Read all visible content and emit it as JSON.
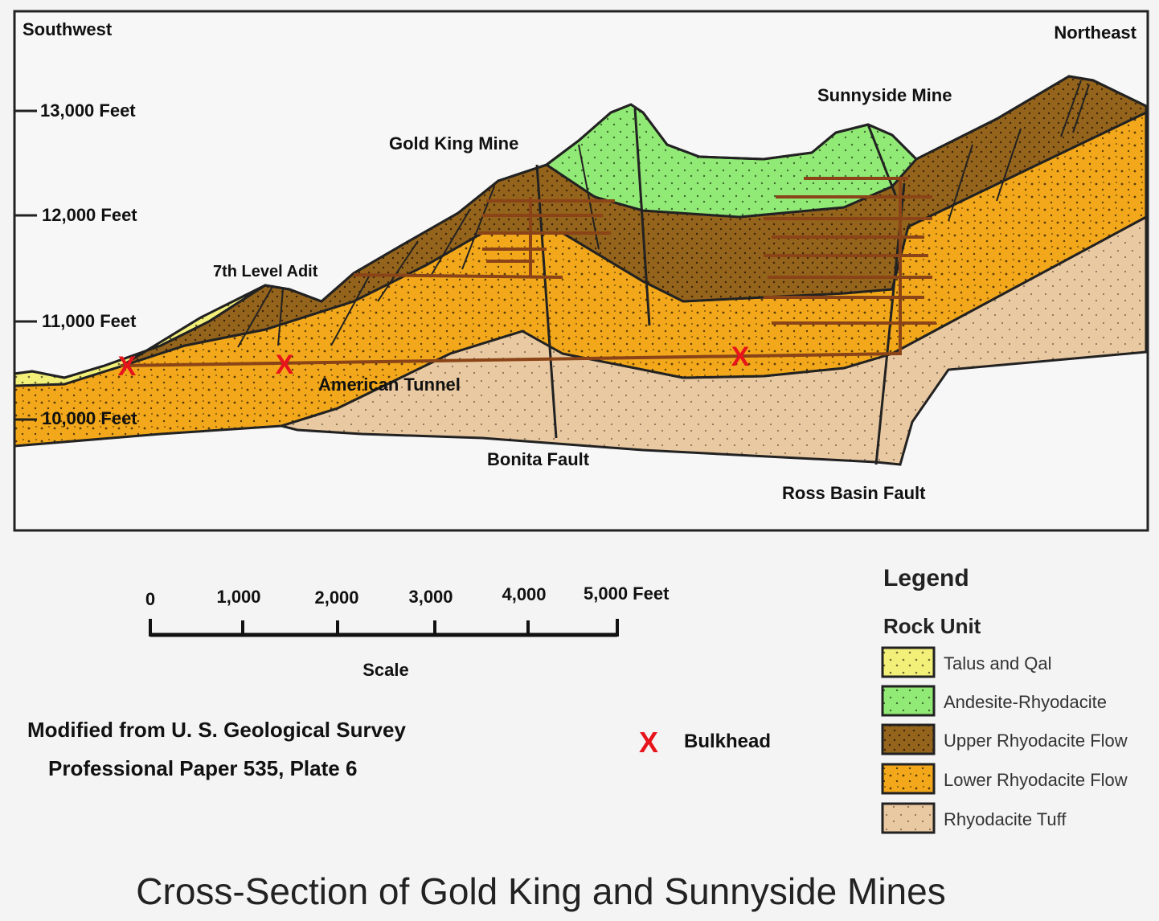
{
  "directions": {
    "left": "Southwest",
    "right": "Northeast"
  },
  "elevations": [
    "13,000 Feet",
    "12,000 Feet",
    "11,000 Feet",
    "10,000 Feet"
  ],
  "features": {
    "gold_king_mine": "Gold King Mine",
    "sunnyside_mine": "Sunnyside Mine",
    "level_adit": "7th Level Adit",
    "american_tunnel": "American Tunnel",
    "bonita_fault": "Bonita Fault",
    "ross_basin_fault": "Ross Basin Fault"
  },
  "scale": {
    "ticks": [
      "0",
      "1,000",
      "2,000",
      "3,000",
      "4,000",
      "5,000 Feet"
    ],
    "label": "Scale"
  },
  "source": {
    "line1": "Modified from U. S. Geological Survey",
    "line2": "Professional Paper 535, Plate 6"
  },
  "bulkhead": {
    "symbol": "X",
    "label": "Bulkhead",
    "color": "#e8141c"
  },
  "legend": {
    "title": "Legend",
    "subtitle": "Rock Unit",
    "items": [
      {
        "label": "Talus and Qal",
        "color": "#f3f07a"
      },
      {
        "label": "Andesite-Rhyodacite",
        "color": "#92ea76"
      },
      {
        "label": "Upper Rhyodacite Flow",
        "color": "#94641c"
      },
      {
        "label": "Lower Rhyodacite Flow",
        "color": "#f2a81a"
      },
      {
        "label": "Rhyodacite Tuff",
        "color": "#e9c9a1"
      }
    ]
  },
  "caption": "Cross-Section of Gold King and Sunnyside Mines"
}
